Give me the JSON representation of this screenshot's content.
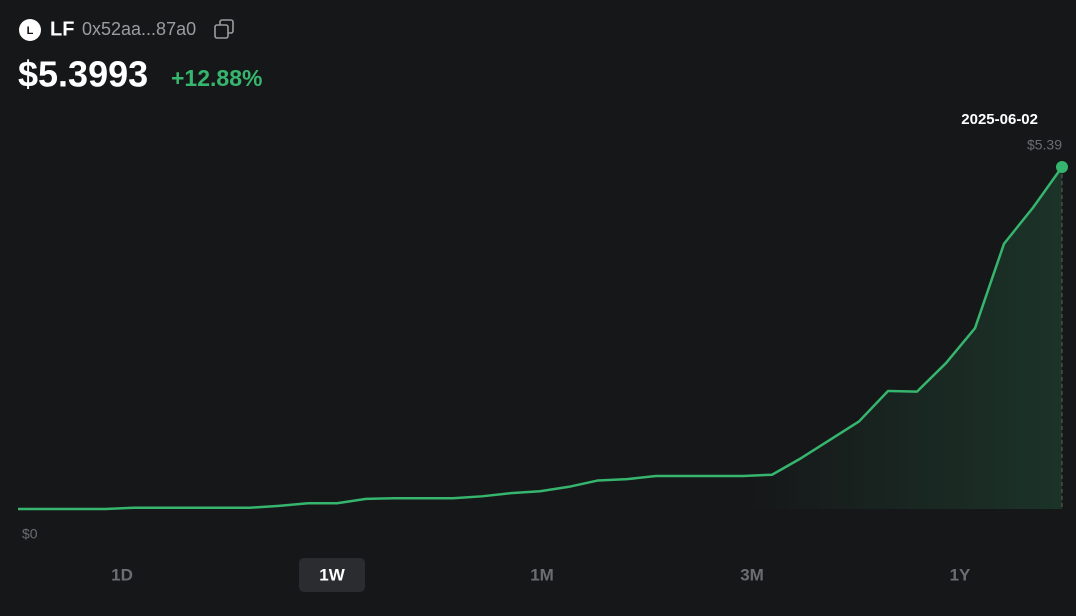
{
  "header": {
    "icon_letter": "L",
    "symbol": "LF",
    "address": "0x52aa...87a0",
    "price": "$5.3993",
    "change": "+12.88%"
  },
  "chart_data": {
    "type": "line",
    "color": "#35b56d",
    "categories": [
      null,
      null,
      null,
      null,
      null,
      null,
      null,
      null,
      null,
      null,
      null,
      null,
      null,
      null,
      null,
      null,
      null,
      null,
      null,
      null,
      null,
      null,
      null,
      null,
      null,
      null,
      null,
      null,
      null,
      null,
      null,
      null,
      null,
      null,
      null,
      null,
      "2025-06-02"
    ],
    "values": [
      0,
      0,
      0,
      0,
      0.02,
      0.02,
      0.02,
      0.02,
      0.02,
      0.05,
      0.09,
      0.09,
      0.16,
      0.17,
      0.17,
      0.17,
      0.2,
      0.25,
      0.28,
      0.35,
      0.45,
      0.47,
      0.52,
      0.52,
      0.52,
      0.52,
      0.54,
      0.8,
      1.09,
      1.38,
      1.86,
      1.85,
      2.3,
      2.85,
      4.18,
      4.75,
      5.39
    ],
    "value_labels": [
      null,
      null,
      null,
      null,
      null,
      null,
      null,
      null,
      null,
      null,
      null,
      null,
      null,
      null,
      null,
      null,
      null,
      null,
      null,
      null,
      null,
      null,
      null,
      null,
      null,
      null,
      null,
      null,
      null,
      null,
      null,
      null,
      null,
      null,
      null,
      null,
      "$5.39"
    ],
    "ylim": [
      0,
      5.39
    ],
    "yticks": [
      {
        "value": 0,
        "label": "$0"
      }
    ]
  },
  "ranges": {
    "items": [
      "1D",
      "1W",
      "1M",
      "3M",
      "1Y"
    ],
    "selected_index": 1
  }
}
